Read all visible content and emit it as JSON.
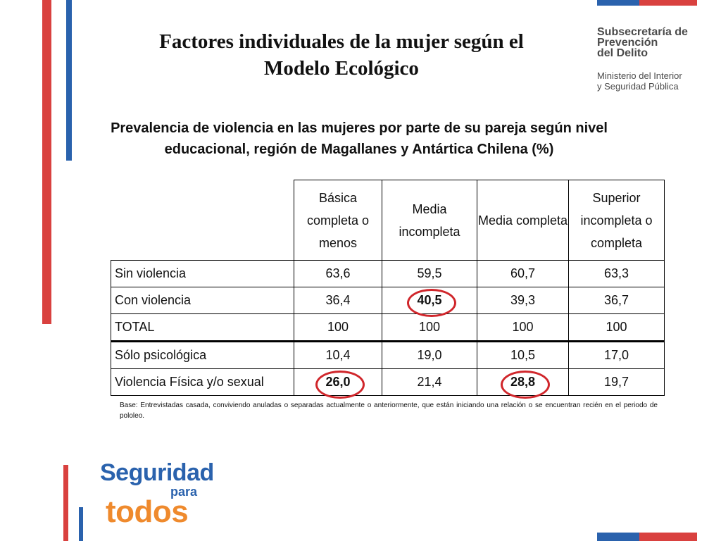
{
  "title": {
    "line1": "Factores individuales de la mujer según el",
    "line2": "Modelo Ecológico"
  },
  "brand": {
    "org_line1": "Subsecretaría de",
    "org_line2": "Prevención",
    "org_line3": "del Delito",
    "ministry_line1": "Ministerio del Interior",
    "ministry_line2": "y Seguridad Pública"
  },
  "subtitle": {
    "line1": "Prevalencia de violencia en las mujeres por parte de su pareja según nivel",
    "line2": "educacional, región de Magallanes y Antártica Chilena (%)"
  },
  "table": {
    "headers": [
      "Básica completa o menos",
      "Media incompleta",
      "Media completa",
      "Superior incompleta o completa"
    ],
    "rows": [
      {
        "label": "Sin violencia",
        "values": [
          "63,6",
          "59,5",
          "60,7",
          "63,3"
        ]
      },
      {
        "label": "Con violencia",
        "values": [
          "36,4",
          "40,5",
          "39,3",
          "36,7"
        ]
      },
      {
        "label": "TOTAL",
        "values": [
          "100",
          "100",
          "100",
          "100"
        ]
      },
      {
        "label": "Sólo psicológica",
        "values": [
          "10,4",
          "19,0",
          "10,5",
          "17,0"
        ]
      },
      {
        "label": "Violencia Física y/o sexual",
        "values": [
          "26,0",
          "21,4",
          "28,8",
          "19,7"
        ]
      }
    ]
  },
  "note": "Base: Entrevistadas casada, conviviendo anuladas o separadas actualmente o anteriormente, que están iniciando una relación o se encuentran recién en el periodo de pololeo.",
  "logo": {
    "word1": "Seguridad",
    "word2": "para",
    "word3": "todos"
  },
  "colors": {
    "accent_red": "#d9413f",
    "accent_blue": "#2a62ad",
    "logo_orange": "#ef8a2d",
    "highlight_ring": "#d0262b"
  }
}
